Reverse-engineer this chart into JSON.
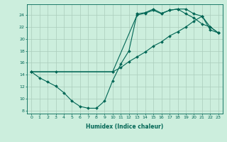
{
  "xlabel": "Humidex (Indice chaleur)",
  "bg_color": "#cceedd",
  "grid_color": "#aaccbb",
  "line_color": "#006655",
  "xlim": [
    -0.5,
    23.5
  ],
  "ylim": [
    7.5,
    25.8
  ],
  "xticks": [
    0,
    1,
    2,
    3,
    4,
    5,
    6,
    7,
    8,
    9,
    10,
    11,
    12,
    13,
    14,
    15,
    16,
    17,
    18,
    19,
    20,
    21,
    22,
    23
  ],
  "yticks": [
    8,
    10,
    12,
    14,
    16,
    18,
    20,
    22,
    24
  ],
  "line1_x": [
    0,
    1,
    2,
    3,
    4,
    5,
    6,
    7,
    8,
    9,
    10,
    11,
    12,
    13,
    14,
    15,
    16,
    17,
    18,
    19,
    20,
    21,
    22,
    23
  ],
  "line1_y": [
    14.5,
    13.5,
    12.8,
    12.1,
    11.0,
    9.6,
    8.7,
    8.4,
    8.4,
    9.6,
    13.0,
    15.8,
    18.0,
    24.2,
    24.4,
    25.0,
    24.3,
    24.8,
    25.0,
    24.2,
    23.5,
    22.5,
    22.0,
    21.0
  ],
  "line2_x": [
    0,
    3,
    10,
    11,
    12,
    13,
    14,
    15,
    16,
    17,
    18,
    19,
    20,
    21,
    22,
    23
  ],
  "line2_y": [
    14.5,
    14.5,
    14.5,
    15.2,
    16.2,
    17.0,
    17.8,
    18.8,
    19.5,
    20.5,
    21.2,
    22.0,
    23.0,
    23.8,
    21.5,
    21.0
  ],
  "line3_x": [
    0,
    10,
    13,
    14,
    15,
    16,
    17,
    18,
    19,
    20,
    21,
    22,
    23
  ],
  "line3_y": [
    14.5,
    14.5,
    24.0,
    24.3,
    24.8,
    24.2,
    24.8,
    25.0,
    25.0,
    24.2,
    23.8,
    22.0,
    21.0
  ]
}
